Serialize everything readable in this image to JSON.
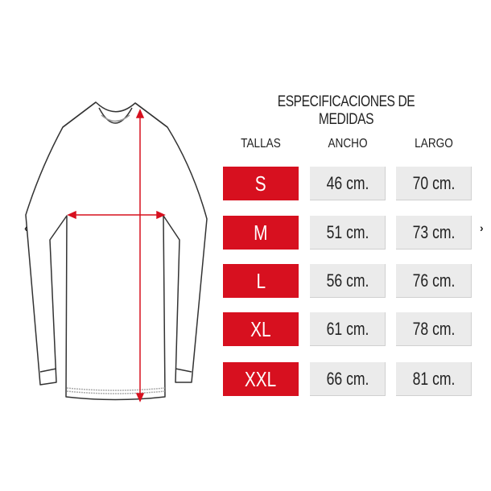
{
  "title": "ESPECIFICACIONES DE MEDIDAS",
  "headers": {
    "size": "TALLAS",
    "width": "ANCHO",
    "length": "LARGO"
  },
  "rows": [
    {
      "size": "S",
      "width": "46 cm.",
      "length": "70 cm."
    },
    {
      "size": "M",
      "width": "51 cm.",
      "length": "73 cm."
    },
    {
      "size": "L",
      "width": "56 cm.",
      "length": "76 cm."
    },
    {
      "size": "XL",
      "width": "61 cm.",
      "length": "78 cm."
    },
    {
      "size": "XXL",
      "width": "66 cm.",
      "length": "81 cm."
    }
  ],
  "nav": {
    "prev": "‹",
    "next": "›"
  },
  "colors": {
    "accent": "#d7101f",
    "cell": "#ebebeb"
  }
}
